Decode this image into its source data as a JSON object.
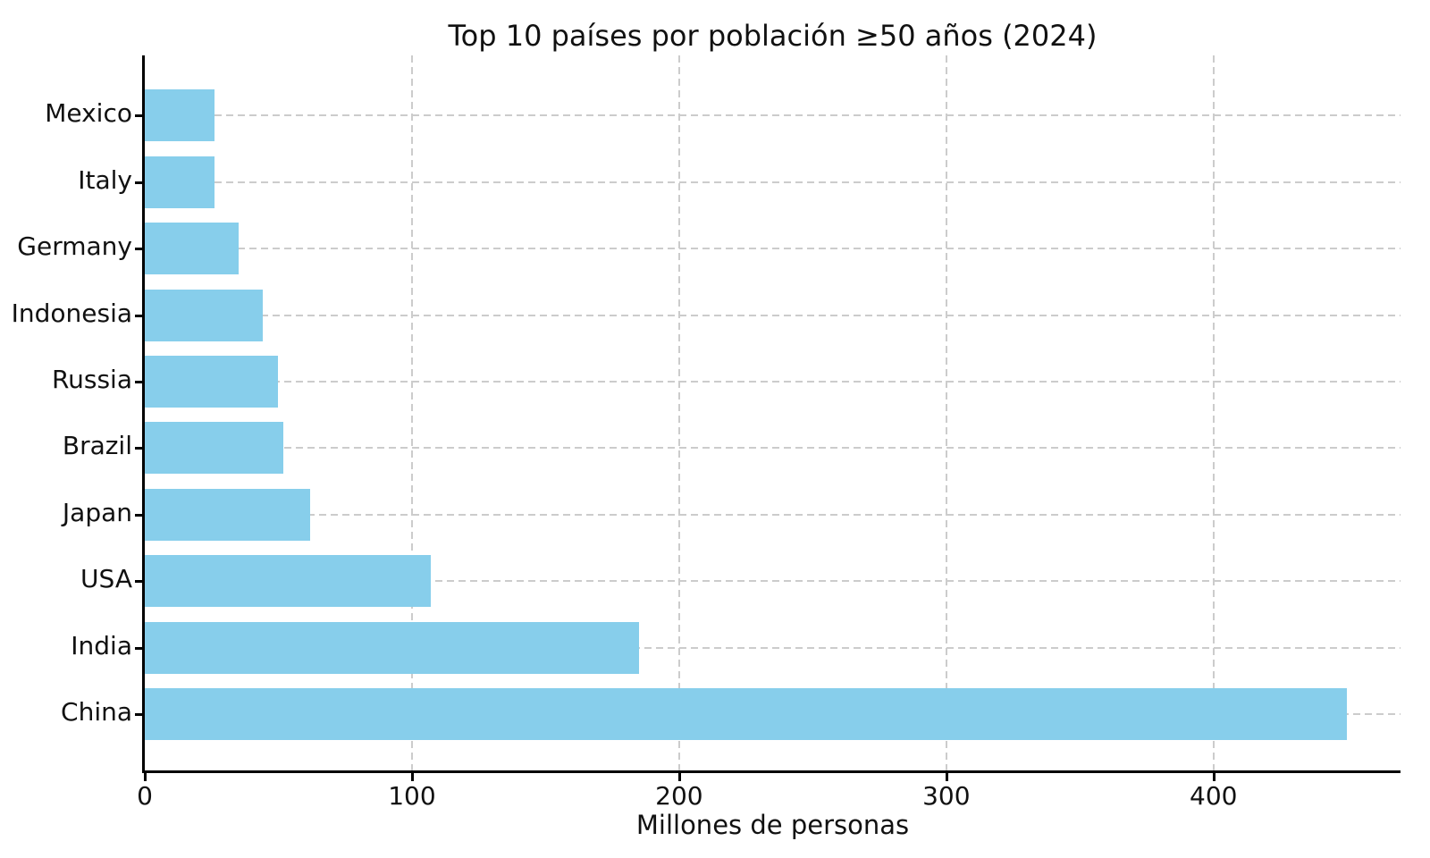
{
  "chart_data": {
    "type": "bar",
    "orientation": "horizontal",
    "title": "Top 10 países por población ≥50 años (2024)",
    "xlabel": "Millones de personas",
    "ylabel": "",
    "categories": [
      "Mexico",
      "Italy",
      "Germany",
      "Indonesia",
      "Russia",
      "Brazil",
      "Japan",
      "USA",
      "India",
      "China"
    ],
    "categories_order": "top-to-bottom as displayed",
    "values": [
      26,
      26,
      35,
      44,
      50,
      52,
      62,
      107,
      185,
      450
    ],
    "x_ticks": [
      0,
      100,
      200,
      300,
      400
    ],
    "xlim": [
      0,
      470
    ],
    "grid": "dashed, both axes, behind bars",
    "legend": false,
    "colors": {
      "bar": "#87CEEB",
      "grid": "#cccccc",
      "spine": "#000000",
      "text": "#111111",
      "background": "#ffffff"
    }
  }
}
